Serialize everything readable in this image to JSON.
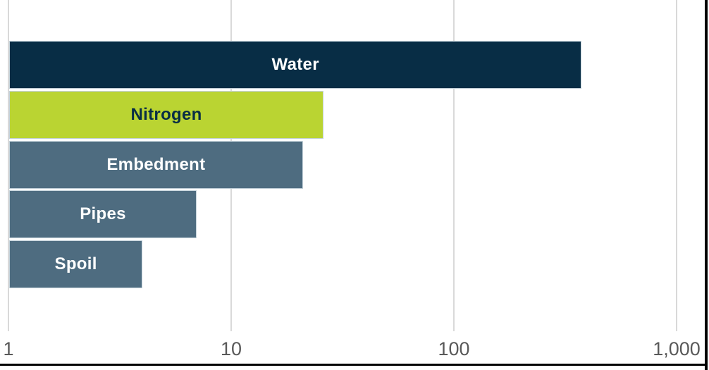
{
  "chart_data": {
    "type": "bar",
    "orientation": "horizontal",
    "x_scale": "log",
    "title": "",
    "xlabel": "",
    "ylabel": "",
    "grid": "vertical-only",
    "legend": "none",
    "xlim": [
      1,
      1000
    ],
    "categories": [
      "Water",
      "Nitrogen",
      "Embedment",
      "Pipes",
      "Spoil"
    ],
    "values": [
      375,
      26,
      21,
      7,
      4
    ],
    "x_ticks": [
      {
        "value": 1,
        "label": "1"
      },
      {
        "value": 10,
        "label": "10"
      },
      {
        "value": 100,
        "label": "100"
      },
      {
        "value": 1000,
        "label": "1,000"
      }
    ],
    "bar_colors": [
      "#082d45",
      "#bad432",
      "#4e6c80",
      "#4e6c80",
      "#4e6c80"
    ],
    "label_colors": [
      "#ffffff",
      "#082d45",
      "#ffffff",
      "#ffffff",
      "#ffffff"
    ]
  },
  "colors": {
    "gridline": "#d9d9d9",
    "axis_text": "#595959",
    "frame": "#000000"
  }
}
